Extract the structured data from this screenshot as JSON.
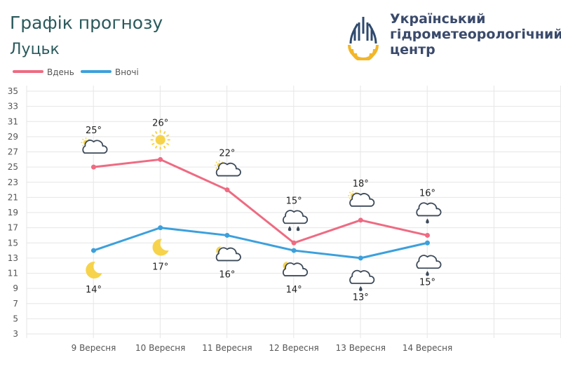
{
  "header": {
    "title": "Графік прогнозу",
    "city": "Луцьк"
  },
  "org": {
    "line1": "Український",
    "line2": "гідрометеорологічний",
    "line3": "центр"
  },
  "colors": {
    "day": "#ee6b82",
    "night": "#3ca0dc",
    "grid": "#e6e6e6",
    "title": "#2a5a5c",
    "org": "#3a4a6b"
  },
  "chart_data": {
    "type": "line",
    "title": "Графік прогнозу",
    "categories": [
      "9 Вересня",
      "10 Вересня",
      "11 Вересня",
      "12 Вересня",
      "13 Вересня",
      "14 Вересня"
    ],
    "series": [
      {
        "name": "Вдень",
        "values": [
          25,
          26,
          22,
          15,
          18,
          16
        ]
      },
      {
        "name": "Вночі",
        "values": [
          14,
          17,
          16,
          14,
          13,
          15
        ]
      }
    ],
    "ylim": [
      3,
      35
    ],
    "yticks": [
      3,
      5,
      7,
      9,
      11,
      13,
      15,
      17,
      19,
      21,
      23,
      25,
      27,
      29,
      31,
      33,
      35
    ],
    "grid": true,
    "legend": "top-left",
    "day_labels": [
      "25°",
      "26°",
      "22°",
      "15°",
      "18°",
      "16°"
    ],
    "night_labels": [
      "14°",
      "17°",
      "16°",
      "14°",
      "13°",
      "15°"
    ],
    "day_icons": [
      "partly-cloudy-icon",
      "sun-icon",
      "partly-cloudy-icon",
      "rain-cloud-icon",
      "partly-cloudy-icon",
      "light-rain-cloud-icon"
    ],
    "night_icons": [
      "moon-icon",
      "moon-icon",
      "partly-cloudy-night-icon",
      "partly-cloudy-night-icon",
      "light-rain-cloud-icon",
      "light-rain-cloud-icon"
    ]
  }
}
